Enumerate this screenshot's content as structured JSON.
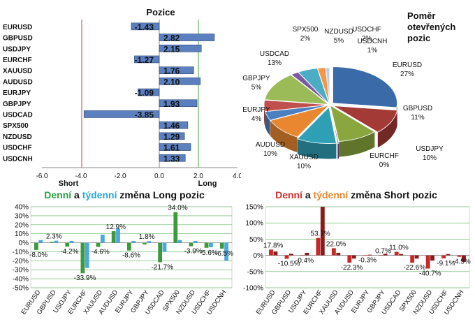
{
  "positions": {
    "title": "Pozice",
    "label_short": "Short",
    "label_long": "Long",
    "chart_data": {
      "type": "bar",
      "orientation": "horizontal",
      "title": "Pozice",
      "categories": [
        "EURUSD",
        "GBPUSD",
        "USDJPY",
        "EURCHF",
        "XAUUSD",
        "AUDUSD",
        "EURJPY",
        "GBPJPY",
        "USDCAD",
        "SPX500",
        "NZDUSD",
        "USDCHF",
        "USDCNH"
      ],
      "values": [
        -1.43,
        2.82,
        2.15,
        -1.27,
        1.76,
        2.1,
        -1.09,
        1.93,
        -3.85,
        1.46,
        1.29,
        1.61,
        1.33
      ],
      "xlim": [
        -6.0,
        4.0
      ],
      "xticks": [
        "-6.0",
        "-4.0",
        "-2.0",
        "0.0",
        "2.0",
        "4.0"
      ],
      "reference_lines": [
        -4.0,
        2.0
      ],
      "colors": {
        "bar": "#5b7fbf",
        "short_line": "#cc4444",
        "long_line": "#44aa44"
      }
    }
  },
  "pie": {
    "title_lines": [
      "Poměr",
      "otevřených",
      "pozic"
    ],
    "chart_data": {
      "type": "pie",
      "title": "Poměr otevřených pozic",
      "slices": [
        {
          "label": "EURUSD",
          "value": 27,
          "text": "27%",
          "color": "#3a6aa8"
        },
        {
          "label": "GBPUSD",
          "value": 11,
          "text": "11%",
          "color": "#a33a36"
        },
        {
          "label": "USDJPY",
          "value": 10,
          "text": "10%",
          "color": "#8aa63e"
        },
        {
          "label": "EURCHF",
          "value": 0,
          "text": "0%",
          "color": "#6c4a8e"
        },
        {
          "label": "XAUUSD",
          "value": 10,
          "text": "10%",
          "color": "#2f9fb5"
        },
        {
          "label": "AUDUSD",
          "value": 10,
          "text": "10%",
          "color": "#e8872f"
        },
        {
          "label": "EURJPY",
          "value": 4,
          "text": "4%",
          "color": "#4a7fc0"
        },
        {
          "label": "GBPJPY",
          "value": 5,
          "text": "5%",
          "color": "#c0504d"
        },
        {
          "label": "USDCAD",
          "value": 13,
          "text": "13%",
          "color": "#9bbb59"
        },
        {
          "label": "SPX500",
          "value": 2,
          "text": "2%",
          "color": "#7a5aa0"
        },
        {
          "label": "NZDUSD",
          "value": 5,
          "text": "5%",
          "color": "#4bacc6"
        },
        {
          "label": "USDCHF",
          "value": 2,
          "text": "2%",
          "color": "#f79646"
        },
        {
          "label": "USDCNH",
          "value": 1,
          "text": "1%",
          "color": "#bcd0ea"
        }
      ]
    }
  },
  "long_change": {
    "title": {
      "part1": "Denní",
      "part2": " a ",
      "part3": "týdenní",
      "part4": " změna Long pozic"
    },
    "title_colors": {
      "part1": "#2ea043",
      "part3": "#29a8e0"
    },
    "chart_data": {
      "type": "bar",
      "title": "Denní a týdenní změna Long pozic",
      "categories": [
        "EURUSD",
        "GBPUSD",
        "USDJPY",
        "EURCHF",
        "XAUUSD",
        "AUDUSD",
        "EURJPY",
        "GBPJPY",
        "USDCAD",
        "SPX500",
        "NZDUSD",
        "USDCHF",
        "USDCNH"
      ],
      "series": [
        {
          "name": "Denní",
          "color": "#3c9a3c",
          "values": [
            -8.0,
            1.0,
            -4.2,
            -33.9,
            -4.6,
            12.9,
            -8.6,
            -1.8,
            -21.7,
            34.0,
            -3.9,
            -5.6,
            -6.5
          ]
        },
        {
          "name": "Týdenní",
          "color": "#4aa7e0",
          "values": [
            3.0,
            2.3,
            2.0,
            -28.0,
            9.0,
            16.0,
            2.0,
            1.8,
            -10.0,
            3.0,
            2.0,
            -5.0,
            -20.0
          ]
        }
      ],
      "data_labels": [
        {
          "text": "-8.0%",
          "series": 0,
          "index": 0
        },
        {
          "text": "2.3%",
          "series": 1,
          "index": 1
        },
        {
          "text": "-4.2%",
          "series": 0,
          "index": 2
        },
        {
          "text": "-33.9%",
          "series": 0,
          "index": 3
        },
        {
          "text": "-4.6%",
          "series": 0,
          "index": 4
        },
        {
          "text": "12.9%",
          "series": 0,
          "index": 5
        },
        {
          "text": "-8.6%",
          "series": 0,
          "index": 6
        },
        {
          "text": "1.8%",
          "series": 1,
          "index": 7
        },
        {
          "text": "-21.7%",
          "series": 0,
          "index": 8
        },
        {
          "text": "34.0%",
          "series": 0,
          "index": 9
        },
        {
          "text": "-3.9%",
          "series": 0,
          "index": 10
        },
        {
          "text": "-5.6%",
          "series": 0,
          "index": 11
        },
        {
          "text": "-6.5%",
          "series": 0,
          "index": 12
        }
      ],
      "ylim": [
        -50,
        40
      ],
      "yticks": [
        "40%",
        "30%",
        "20%",
        "10%",
        "0%",
        "-10%",
        "-20%",
        "-30%",
        "-40%",
        "-50%"
      ],
      "grid": true
    }
  },
  "short_change": {
    "title": {
      "part1": "Denní",
      "part2": " a ",
      "part3": "týdenní",
      "part4": " změna Short pozic"
    },
    "title_colors": {
      "part1": "#d22f2f",
      "part3": "#e8872f"
    },
    "chart_data": {
      "type": "bar",
      "title": "Denní a týdenní změna Short pozic",
      "categories": [
        "EURUSD",
        "GBPUSD",
        "USDJPY",
        "EURCHF",
        "XAUUSD",
        "AUDUSD",
        "EURJPY",
        "GBPJPY",
        "USDCAD",
        "SPX500",
        "NZDUSD",
        "USDCHF",
        "USDCNH"
      ],
      "series": [
        {
          "name": "Denní",
          "color": "#c62828",
          "values": [
            17.8,
            -10.5,
            -0.4,
            53.7,
            22.0,
            -22.3,
            -0.3,
            0.7,
            11.0,
            -22.6,
            -40.7,
            -9.1,
            -4.5
          ]
        },
        {
          "name": "Týdenní",
          "color": "#8b1a1a",
          "values": [
            12.0,
            5.0,
            8.0,
            150.0,
            8.0,
            -10.0,
            2.0,
            5.0,
            4.0,
            -10.0,
            -16.0,
            4.0,
            -20.0
          ]
        }
      ],
      "data_labels": [
        {
          "text": "17.8%",
          "series": 0,
          "index": 0
        },
        {
          "text": "-10.5%",
          "series": 0,
          "index": 1
        },
        {
          "text": "-0.4%",
          "series": 0,
          "index": 2
        },
        {
          "text": "53.7%",
          "series": 0,
          "index": 3
        },
        {
          "text": "22.0%",
          "series": 0,
          "index": 4
        },
        {
          "text": "-22.3%",
          "series": 0,
          "index": 5
        },
        {
          "text": "-0.3%",
          "series": 0,
          "index": 6
        },
        {
          "text": "0.7%",
          "series": 0,
          "index": 7
        },
        {
          "text": "11.0%",
          "series": 0,
          "index": 8
        },
        {
          "text": "-22.6%",
          "series": 0,
          "index": 9
        },
        {
          "text": "-40.7%",
          "series": 0,
          "index": 10
        },
        {
          "text": "-9.1%",
          "series": 0,
          "index": 11
        },
        {
          "text": "-4.5%",
          "series": 0,
          "index": 12
        }
      ],
      "ylim": [
        -100,
        150
      ],
      "yticks": [
        "150%",
        "100%",
        "50%",
        "0%",
        "-50%",
        "-100%"
      ],
      "grid": true
    }
  }
}
